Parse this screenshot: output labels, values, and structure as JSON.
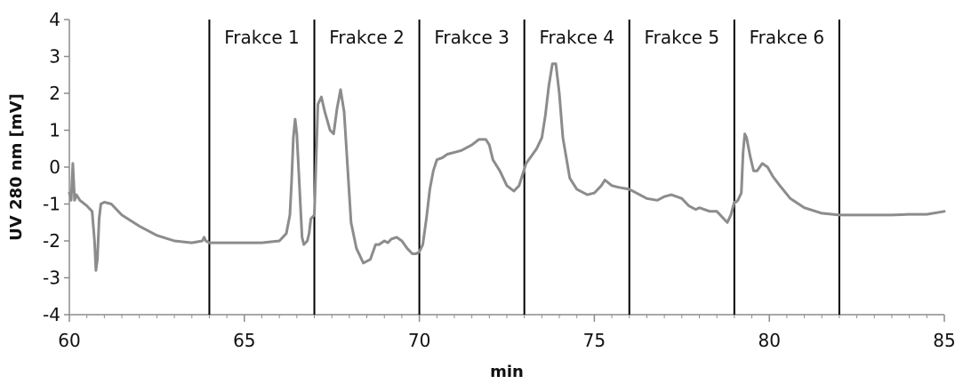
{
  "chart_data": {
    "type": "line",
    "title": "",
    "xlabel": "min",
    "ylabel": "UV 280 nm [mV]",
    "xlim": [
      60,
      85
    ],
    "ylim": [
      -4,
      4
    ],
    "xticks": [
      60,
      65,
      70,
      75,
      80,
      85
    ],
    "yticks": [
      -4,
      -3,
      -2,
      -1,
      0,
      1,
      2,
      3,
      4
    ],
    "grid": false,
    "line_color": "#8c8c8c",
    "divider_color": "#000000",
    "fraction_boundaries": [
      64,
      67,
      70,
      73,
      76,
      79,
      82
    ],
    "fractions": [
      {
        "label": "Frakce 1",
        "start": 64,
        "end": 67
      },
      {
        "label": "Frakce 2",
        "start": 67,
        "end": 70
      },
      {
        "label": "Frakce 3",
        "start": 70,
        "end": 73
      },
      {
        "label": "Frakce 4",
        "start": 73,
        "end": 76
      },
      {
        "label": "Frakce 5",
        "start": 76,
        "end": 79
      },
      {
        "label": "Frakce 6",
        "start": 79,
        "end": 82
      }
    ],
    "series": [
      {
        "x": [
          60.0,
          60.05,
          60.1,
          60.15,
          60.2,
          60.3,
          60.5,
          60.65,
          60.72,
          60.76,
          60.8,
          60.85,
          60.9,
          61.0,
          61.2,
          61.5,
          62.0,
          62.5,
          63.0,
          63.5,
          63.8,
          63.85,
          63.9,
          64.0,
          64.5,
          65.0,
          65.5,
          66.0,
          66.2,
          66.3,
          66.35,
          66.4,
          66.45,
          66.5,
          66.6,
          66.65,
          66.7,
          66.8,
          66.85,
          66.9,
          67.0,
          67.1,
          67.2,
          67.3,
          67.45,
          67.55,
          67.65,
          67.75,
          67.85,
          67.95,
          68.05,
          68.2,
          68.4,
          68.6,
          68.75,
          68.85,
          69.0,
          69.1,
          69.2,
          69.35,
          69.5,
          69.65,
          69.8,
          69.9,
          70.0,
          70.1,
          70.2,
          70.3,
          70.4,
          70.5,
          70.65,
          70.8,
          71.0,
          71.2,
          71.5,
          71.7,
          71.9,
          72.0,
          72.1,
          72.3,
          72.5,
          72.7,
          72.85,
          72.95,
          73.05,
          73.2,
          73.35,
          73.5,
          73.6,
          73.7,
          73.8,
          73.9,
          74.0,
          74.1,
          74.3,
          74.5,
          74.8,
          75.0,
          75.2,
          75.3,
          75.5,
          75.7,
          76.0,
          76.2,
          76.5,
          76.8,
          77.0,
          77.2,
          77.5,
          77.7,
          77.8,
          77.9,
          78.0,
          78.3,
          78.5,
          78.7,
          78.8,
          78.9,
          79.0,
          79.05,
          79.1,
          79.2,
          79.25,
          79.3,
          79.35,
          79.45,
          79.55,
          79.65,
          79.8,
          79.95,
          80.1,
          80.3,
          80.6,
          81.0,
          81.5,
          82.0,
          82.5,
          83.0,
          83.5,
          84.0,
          84.5,
          85.0
        ],
        "y": [
          -0.7,
          -0.9,
          0.1,
          -0.9,
          -0.75,
          -0.9,
          -1.05,
          -1.2,
          -2.0,
          -2.8,
          -2.5,
          -1.4,
          -1.0,
          -0.95,
          -1.0,
          -1.3,
          -1.6,
          -1.85,
          -2.0,
          -2.05,
          -2.0,
          -1.9,
          -2.0,
          -2.05,
          -2.05,
          -2.05,
          -2.05,
          -2.0,
          -1.8,
          -1.3,
          -0.4,
          0.8,
          1.3,
          0.9,
          -1.0,
          -1.9,
          -2.1,
          -2.0,
          -1.8,
          -1.4,
          -1.3,
          1.7,
          1.9,
          1.5,
          1.0,
          0.9,
          1.6,
          2.1,
          1.5,
          0.0,
          -1.5,
          -2.2,
          -2.6,
          -2.5,
          -2.1,
          -2.1,
          -2.0,
          -2.05,
          -1.95,
          -1.9,
          -2.0,
          -2.2,
          -2.35,
          -2.35,
          -2.3,
          -2.1,
          -1.4,
          -0.6,
          -0.1,
          0.2,
          0.25,
          0.35,
          0.4,
          0.45,
          0.6,
          0.75,
          0.75,
          0.6,
          0.2,
          -0.1,
          -0.5,
          -0.65,
          -0.5,
          -0.2,
          0.1,
          0.3,
          0.5,
          0.8,
          1.4,
          2.2,
          2.8,
          2.8,
          2.0,
          0.8,
          -0.3,
          -0.6,
          -0.75,
          -0.7,
          -0.5,
          -0.35,
          -0.5,
          -0.55,
          -0.6,
          -0.7,
          -0.85,
          -0.9,
          -0.8,
          -0.75,
          -0.85,
          -1.05,
          -1.1,
          -1.15,
          -1.1,
          -1.2,
          -1.2,
          -1.4,
          -1.5,
          -1.3,
          -0.95,
          -0.95,
          -0.9,
          -0.7,
          0.4,
          0.9,
          0.8,
          0.3,
          -0.1,
          -0.1,
          0.1,
          0.0,
          -0.25,
          -0.5,
          -0.85,
          -1.1,
          -1.25,
          -1.3,
          -1.3,
          -1.3,
          -1.3,
          -1.28,
          -1.28,
          -1.2
        ]
      }
    ]
  }
}
